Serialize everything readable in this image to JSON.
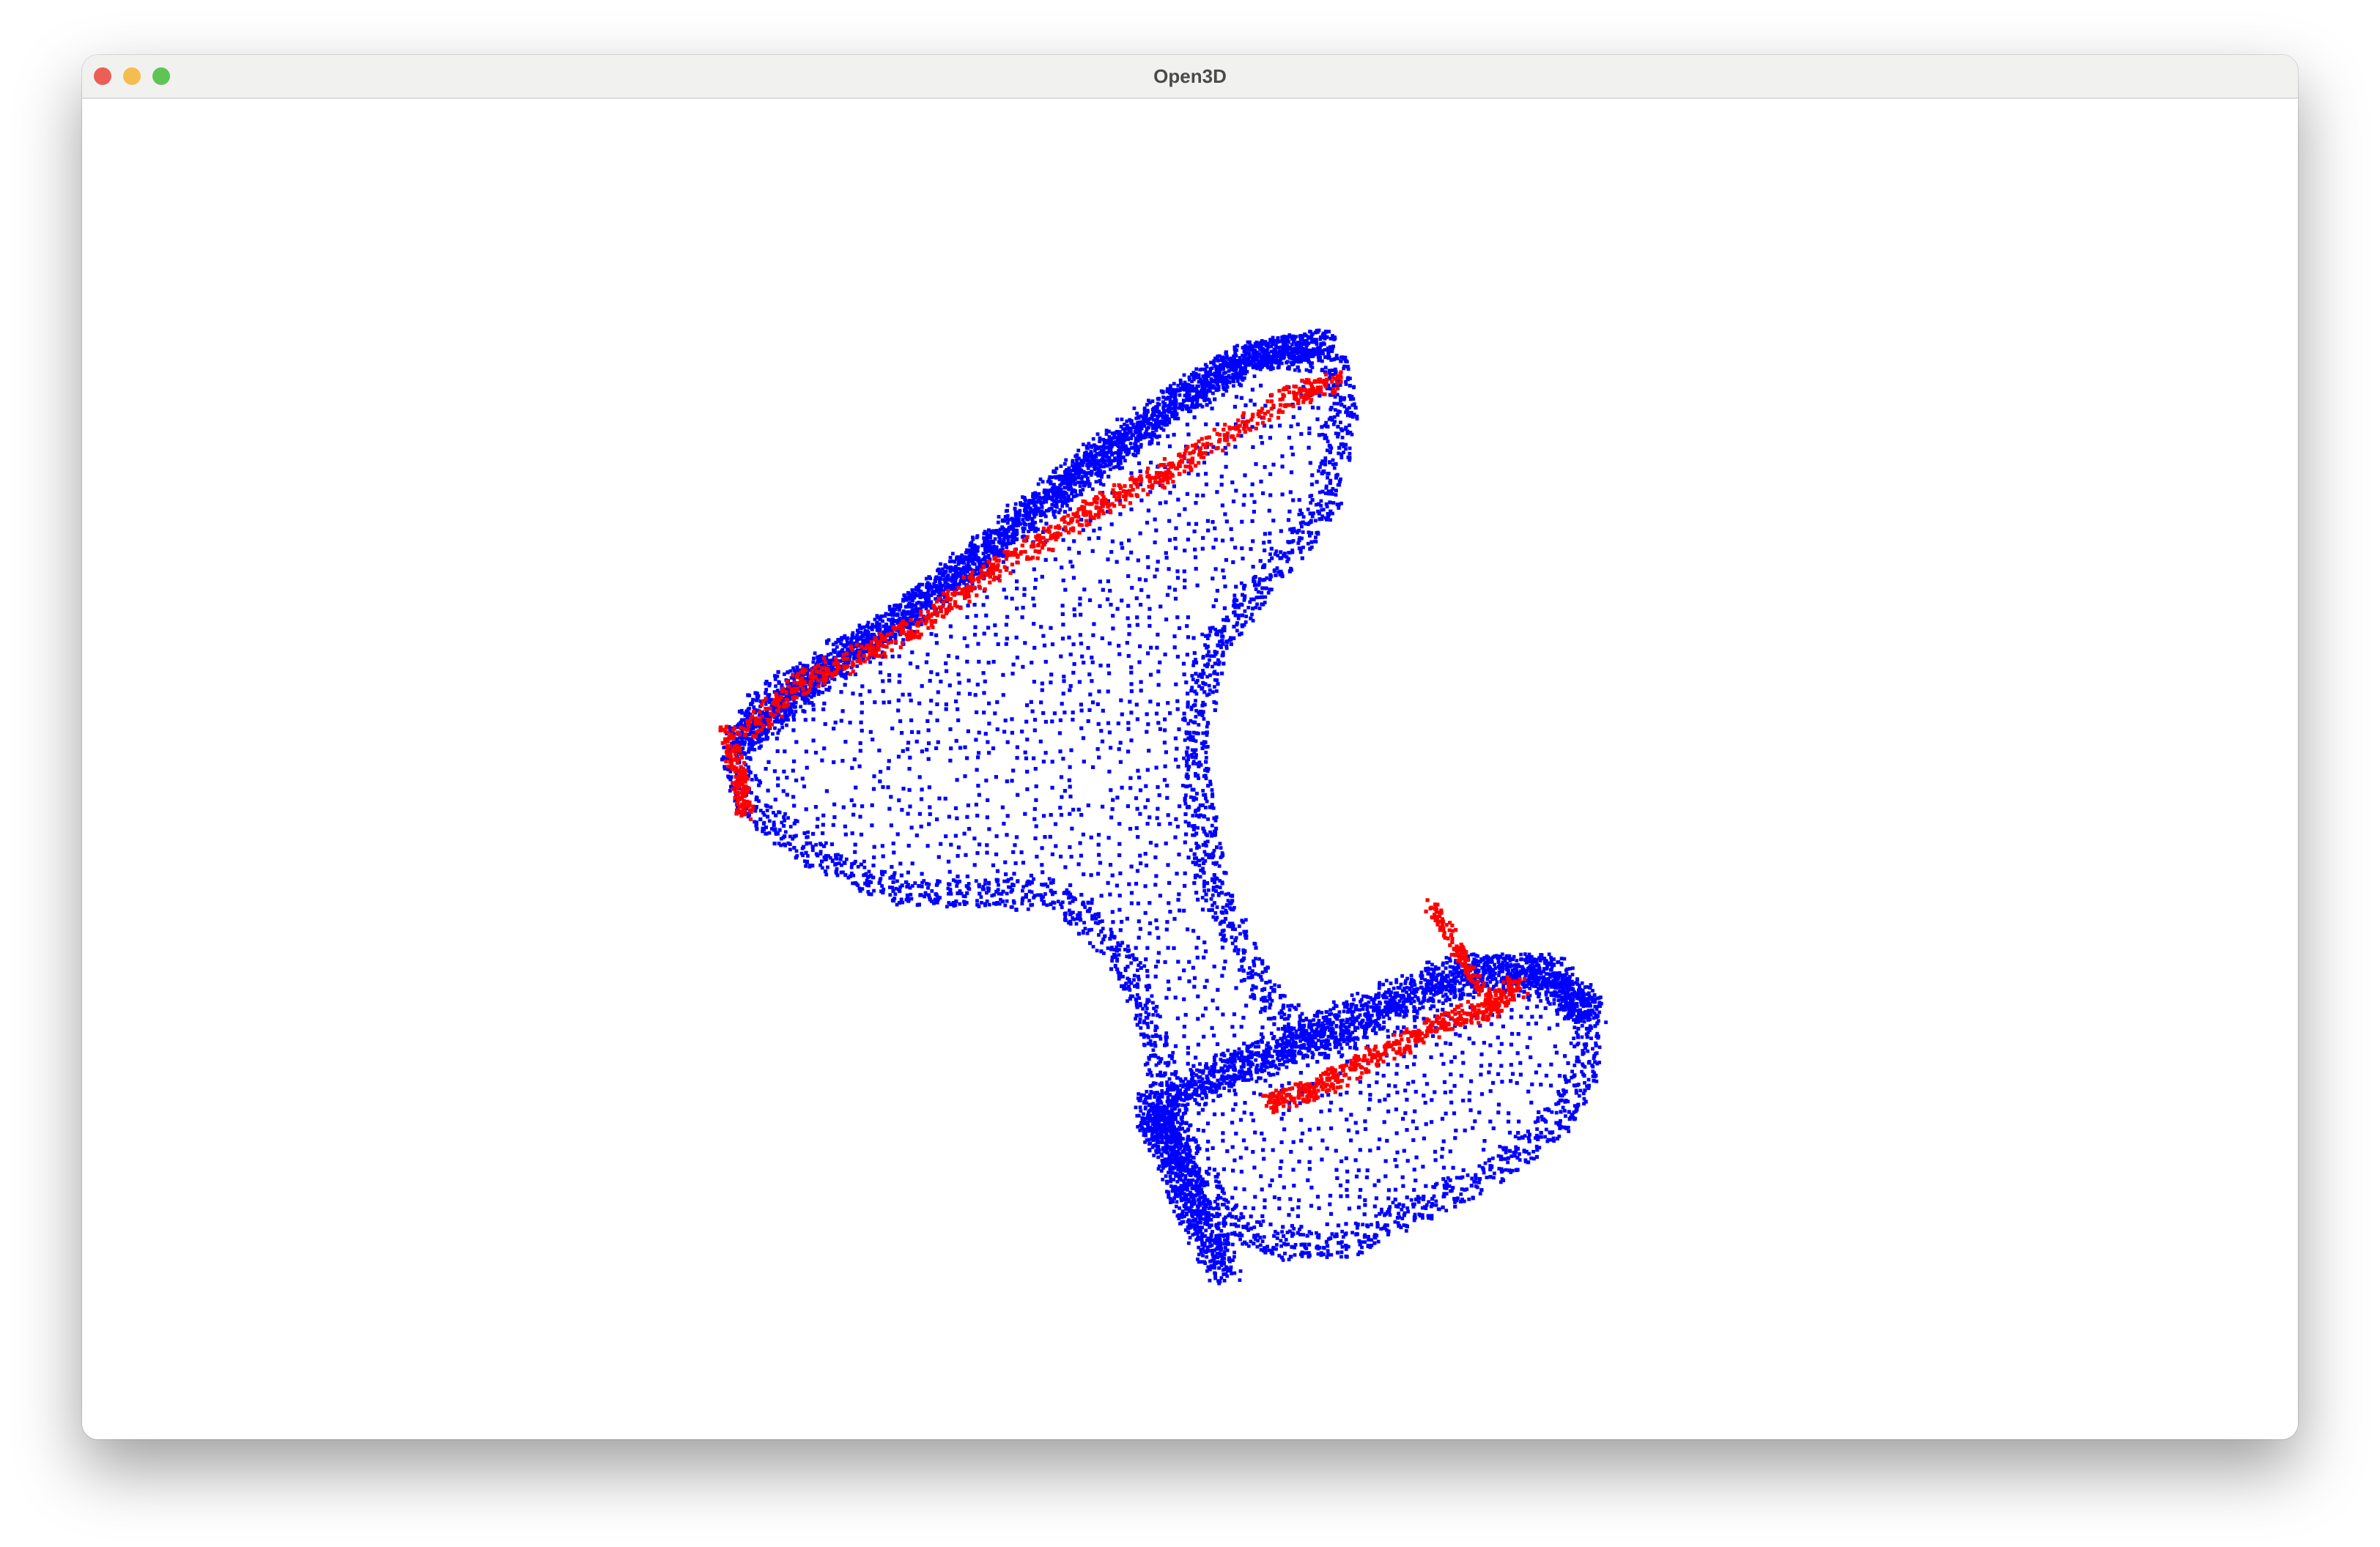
{
  "window": {
    "title": "Open3D"
  },
  "colors": {
    "titlebar": "#f1f1f0",
    "close": "#ec5f57",
    "minimize": "#f5bd4f",
    "zoom": "#5fc454",
    "background": "#ffffff",
    "model_points": "#0000ff",
    "highlight_points": "#ff0000"
  },
  "icons": {
    "close": "close-traffic-light-icon",
    "minimize": "minimize-traffic-light-icon",
    "zoom": "zoom-traffic-light-icon"
  }
}
